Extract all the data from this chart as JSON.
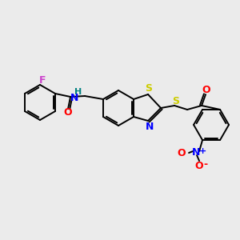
{
  "bg_color": "#ebebeb",
  "bond_color": "#000000",
  "atom_colors": {
    "F": "#cc44cc",
    "O": "#ff0000",
    "N": "#0000ff",
    "S": "#cccc00",
    "H": "#008080",
    "C": "#000000"
  },
  "figsize": [
    3.0,
    3.0
  ],
  "dpi": 100,
  "lw": 1.4,
  "r_hex": 20,
  "r_5ring": 16
}
